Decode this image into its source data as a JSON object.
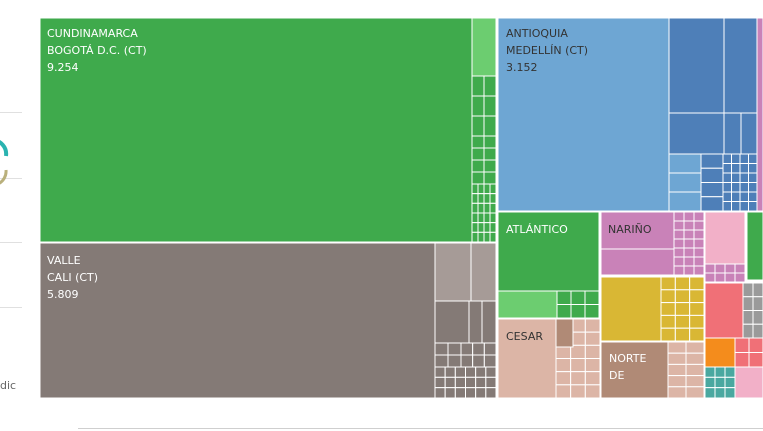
{
  "chart_data": {
    "type": "treemap",
    "series": [
      {
        "region": "CUNDINAMARCA",
        "city": "BOGOTÁ D.C. (CT)",
        "value": "9.254",
        "color": "#3faa4c"
      },
      {
        "region": "VALLE",
        "city": "CALI (CT)",
        "value": "5.809",
        "color": "#847a76"
      },
      {
        "region": "ANTIOQUIA",
        "city": "MEDELLÍN (CT)",
        "value": "3.152",
        "color": "#6ea6d3"
      },
      {
        "region": "ATLÁNTICO",
        "color": "#3faa4c"
      },
      {
        "region": "NARIÑO",
        "color": "#c982b8"
      },
      {
        "region": "CESAR",
        "color": "#dcb5a6"
      },
      {
        "region": "NORTE DE",
        "color": "#b08a76"
      }
    ],
    "palette": {
      "green": "#3faa4c",
      "light_green": "#6ccd70",
      "taupe": "#847a76",
      "light_taupe": "#a69b97",
      "blue": "#6ea6d3",
      "dark_blue": "#4e7fb8",
      "pink": "#c982b8",
      "light_pink": "#f2b0c8",
      "yellow": "#d9b734",
      "salmon": "#dcb5a6",
      "brown": "#b08a76",
      "red": "#f07077",
      "orange": "#f48c1c",
      "teal": "#4aa8a0",
      "grey": "#9a9a9a"
    }
  },
  "left_strip": {
    "text": "dic",
    "accent": "#2ab3b0"
  }
}
